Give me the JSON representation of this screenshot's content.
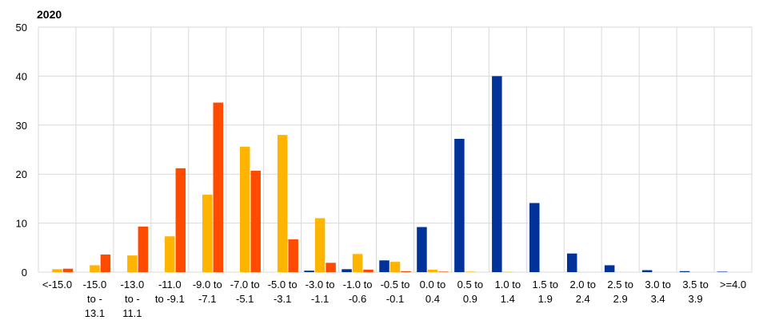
{
  "chart_data": {
    "type": "bar",
    "title": "2020",
    "xlabel": "",
    "ylabel": "",
    "ylim": [
      0,
      50
    ],
    "yticks": [
      0,
      10,
      20,
      30,
      40,
      50
    ],
    "grid": true,
    "categories": [
      "<-15.0",
      "-15.0 to -13.1",
      "-13.0 to -11.1",
      "-11.0 to -9.1",
      "-9.0 to -7.1",
      "-7.0 to -5.1",
      "-5.0 to -3.1",
      "-3.0 to -1.1",
      "-1.0 to -0.6",
      "-0.5 to -0.1",
      "0.0 to 0.4",
      "0.5 to 0.9",
      "1.0 to 1.4",
      "1.5 to 1.9",
      "2.0 to 2.4",
      "2.5 to 2.9",
      "3.0 to 3.4",
      "3.5 to 3.9",
      ">=4.0"
    ],
    "category_label_lines": [
      [
        "<-15.0"
      ],
      [
        "-15.0",
        "to -",
        "13.1"
      ],
      [
        "-13.0",
        "to -",
        "11.1"
      ],
      [
        "-11.0",
        "to -9.1"
      ],
      [
        "-9.0 to",
        "-7.1"
      ],
      [
        "-7.0 to",
        "-5.1"
      ],
      [
        "-5.0 to",
        "-3.1"
      ],
      [
        "-3.0 to",
        "-1.1"
      ],
      [
        "-1.0 to",
        "-0.6"
      ],
      [
        "-0.5 to",
        "-0.1"
      ],
      [
        "0.0 to",
        "0.4"
      ],
      [
        "0.5 to",
        "0.9"
      ],
      [
        "1.0  to",
        "1.4"
      ],
      [
        "1.5  to",
        "1.9"
      ],
      [
        "2.0  to",
        "2.4"
      ],
      [
        "2.5  to",
        "2.9"
      ],
      [
        "3.0  to",
        "3.4"
      ],
      [
        "3.5  to",
        "3.9"
      ],
      [
        ">=4.0"
      ]
    ],
    "series": [
      {
        "color": "#003299",
        "values": [
          0,
          0,
          0,
          0,
          0,
          0,
          0,
          0.3,
          0.6,
          2.4,
          9.2,
          27.2,
          40,
          14.1,
          3.8,
          1.4,
          0.4,
          0.2,
          0.1
        ]
      },
      {
        "color": "#FFB400",
        "values": [
          0.6,
          1.4,
          3.4,
          7.3,
          15.8,
          25.6,
          28,
          11,
          3.7,
          2.1,
          0.5,
          0.1,
          0.05,
          0,
          0,
          0,
          0,
          0,
          0
        ]
      },
      {
        "color": "#FF4B00",
        "values": [
          0.7,
          3.6,
          9.3,
          21.2,
          34.6,
          20.7,
          6.7,
          1.9,
          0.5,
          0.2,
          0.1,
          0,
          0,
          0,
          0,
          0,
          0,
          0,
          0
        ]
      }
    ]
  }
}
